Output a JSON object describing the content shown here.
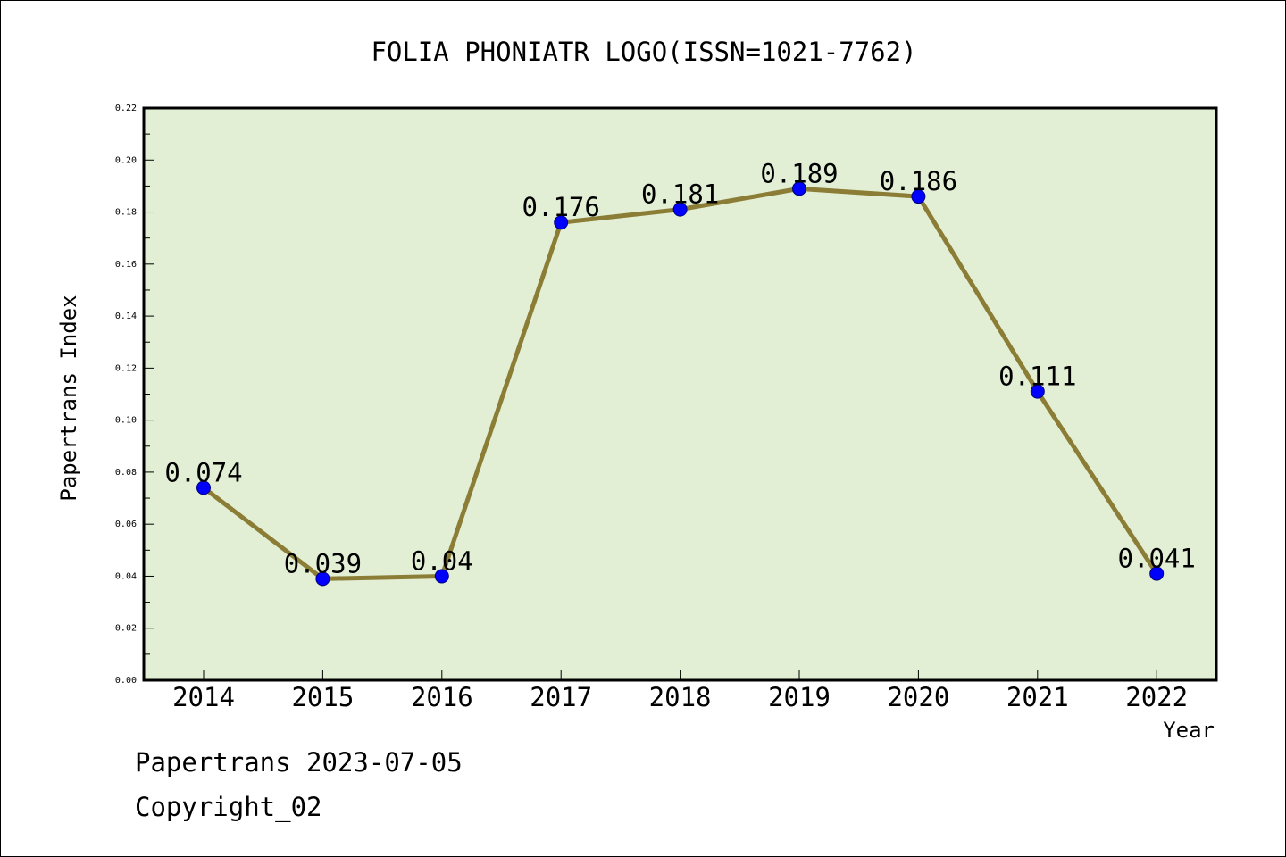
{
  "chart_data": {
    "type": "line",
    "title": "FOLIA PHONIATR LOGO(ISSN=1021-7762)",
    "xlabel": "Year",
    "ylabel": "Papertrans Index",
    "categories": [
      "2014",
      "2015",
      "2016",
      "2017",
      "2018",
      "2019",
      "2020",
      "2021",
      "2022"
    ],
    "series": [
      {
        "values": [
          0.074,
          0.039,
          0.04,
          0.176,
          0.181,
          0.189,
          0.186,
          0.111,
          0.041
        ],
        "labels": [
          "0.074",
          "0.039",
          "0.04",
          "0.176",
          "0.181",
          "0.189",
          "0.186",
          "0.111",
          "0.041"
        ]
      }
    ],
    "ylim": [
      0,
      0.22
    ],
    "yticks": [
      "0.00",
      "0.02",
      "0.04",
      "0.06",
      "0.08",
      "0.10",
      "0.12",
      "0.14",
      "0.16",
      "0.18",
      "0.20",
      "0.22"
    ],
    "grid": false,
    "legend": "none",
    "colors": {
      "plot_background": "#e2efd5",
      "line": "#8b7d35",
      "marker": "#0000ff",
      "axis": "#000000"
    }
  },
  "footer": {
    "date_line": "Papertrans 2023-07-05",
    "copyright": "Copyright_02"
  }
}
